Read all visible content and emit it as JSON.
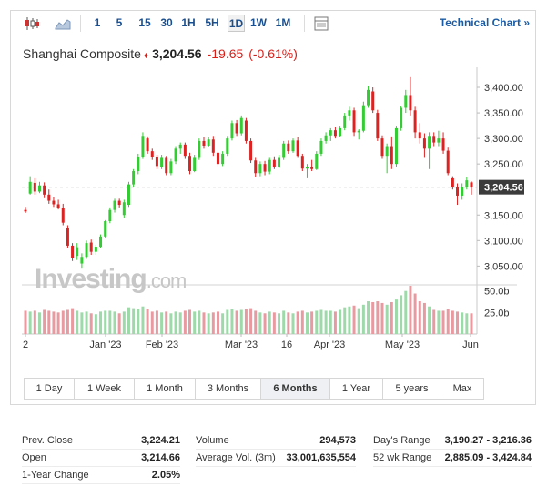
{
  "toolbar": {
    "intervals": [
      "1",
      "5",
      "15",
      "30",
      "1H",
      "5H",
      "1D",
      "1W",
      "1M"
    ],
    "active_interval": "1D",
    "technical_chart_label": "Technical Chart",
    "technical_chart_arrow": "»"
  },
  "instrument": {
    "name": "Shanghai Composite",
    "direction_arrow": "♦",
    "price": "3,204.56",
    "change": "-19.65",
    "change_pct": "(-0.61%)"
  },
  "watermark": {
    "brand": "Investing",
    "suffix": ".com"
  },
  "colors": {
    "up": "#33cc33",
    "down": "#dd2222",
    "vol_up": "#9ed9a9",
    "vol_down": "#e89aa0",
    "price_tag": "#3b3b3b",
    "link": "#1a5ba6"
  },
  "chart_data": {
    "type": "candlestick",
    "y_axis": {
      "min": 3015,
      "max": 3425,
      "ticks": [
        3400,
        3350,
        3300,
        3250,
        3150,
        3100,
        3050
      ],
      "tick_labels": [
        "3,400.00",
        "3,350.00",
        "3,300.00",
        "3,250.00",
        "3,150.00",
        "3,100.00",
        "3,050.00"
      ]
    },
    "last_price_line": 3204.56,
    "last_price_label": "3,204.56",
    "x_labels": [
      "2",
      "Jan '23",
      "Feb '23",
      "Mar '23",
      "16",
      "Apr '23",
      "May '23",
      "Jun"
    ],
    "volume_axis": {
      "max": 56,
      "ticks": [
        50,
        25
      ],
      "tick_labels": [
        "50.0b",
        "25.0b"
      ]
    },
    "candles": [
      [
        3160,
        3166,
        3154,
        3157,
        27
      ],
      [
        3192,
        3226,
        3190,
        3215,
        26
      ],
      [
        3213,
        3222,
        3190,
        3196,
        27
      ],
      [
        3196,
        3215,
        3193,
        3208,
        25
      ],
      [
        3208,
        3214,
        3183,
        3190,
        28
      ],
      [
        3190,
        3200,
        3172,
        3178,
        27
      ],
      [
        3178,
        3186,
        3166,
        3171,
        26
      ],
      [
        3171,
        3180,
        3161,
        3164,
        25
      ],
      [
        3164,
        3172,
        3130,
        3135,
        27
      ],
      [
        3125,
        3130,
        3085,
        3090,
        28
      ],
      [
        3090,
        3095,
        3060,
        3065,
        30
      ],
      [
        3070,
        3095,
        3062,
        3087,
        27
      ],
      [
        3055,
        3075,
        3045,
        3068,
        25
      ],
      [
        3068,
        3100,
        3064,
        3095,
        26
      ],
      [
        3096,
        3102,
        3072,
        3078,
        24
      ],
      [
        3078,
        3092,
        3072,
        3088,
        23
      ],
      [
        3088,
        3112,
        3085,
        3108,
        26
      ],
      [
        3108,
        3140,
        3105,
        3138,
        27
      ],
      [
        3138,
        3165,
        3134,
        3160,
        27
      ],
      [
        3160,
        3182,
        3155,
        3178,
        26
      ],
      [
        3178,
        3182,
        3165,
        3170,
        24
      ],
      [
        3150,
        3180,
        3144,
        3175,
        26
      ],
      [
        3170,
        3215,
        3166,
        3210,
        31
      ],
      [
        3210,
        3240,
        3205,
        3236,
        30
      ],
      [
        3236,
        3270,
        3230,
        3264,
        29
      ],
      [
        3264,
        3312,
        3260,
        3305,
        32
      ],
      [
        3300,
        3304,
        3270,
        3275,
        29
      ],
      [
        3275,
        3280,
        3258,
        3264,
        26
      ],
      [
        3264,
        3268,
        3240,
        3246,
        27
      ],
      [
        3244,
        3268,
        3240,
        3262,
        25
      ],
      [
        3262,
        3266,
        3228,
        3232,
        26
      ],
      [
        3232,
        3260,
        3228,
        3255,
        24
      ],
      [
        3255,
        3285,
        3250,
        3280,
        26
      ],
      [
        3280,
        3292,
        3270,
        3288,
        25
      ],
      [
        3288,
        3292,
        3260,
        3266,
        27
      ],
      [
        3266,
        3272,
        3230,
        3236,
        28
      ],
      [
        3236,
        3268,
        3234,
        3262,
        26
      ],
      [
        3262,
        3300,
        3258,
        3295,
        27
      ],
      [
        3295,
        3302,
        3280,
        3286,
        25
      ],
      [
        3286,
        3302,
        3284,
        3298,
        24
      ],
      [
        3298,
        3305,
        3266,
        3272,
        25
      ],
      [
        3272,
        3276,
        3245,
        3250,
        26
      ],
      [
        3250,
        3275,
        3246,
        3270,
        24
      ],
      [
        3270,
        3305,
        3266,
        3300,
        28
      ],
      [
        3300,
        3335,
        3296,
        3330,
        29
      ],
      [
        3330,
        3336,
        3305,
        3310,
        27
      ],
      [
        3310,
        3345,
        3306,
        3340,
        28
      ],
      [
        3335,
        3340,
        3290,
        3295,
        29
      ],
      [
        3295,
        3300,
        3252,
        3257,
        30
      ],
      [
        3257,
        3262,
        3225,
        3232,
        27
      ],
      [
        3232,
        3255,
        3226,
        3250,
        25
      ],
      [
        3250,
        3256,
        3228,
        3235,
        24
      ],
      [
        3235,
        3262,
        3230,
        3258,
        26
      ],
      [
        3258,
        3265,
        3240,
        3245,
        25
      ],
      [
        3245,
        3268,
        3242,
        3262,
        24
      ],
      [
        3262,
        3295,
        3258,
        3290,
        27
      ],
      [
        3290,
        3296,
        3270,
        3275,
        25
      ],
      [
        3275,
        3300,
        3272,
        3296,
        24
      ],
      [
        3296,
        3302,
        3262,
        3266,
        26
      ],
      [
        3266,
        3270,
        3236,
        3241,
        27
      ],
      [
        3241,
        3250,
        3222,
        3245,
        25
      ],
      [
        3245,
        3258,
        3236,
        3240,
        26
      ],
      [
        3240,
        3275,
        3238,
        3270,
        27
      ],
      [
        3270,
        3300,
        3266,
        3295,
        28
      ],
      [
        3295,
        3312,
        3290,
        3306,
        27
      ],
      [
        3306,
        3320,
        3295,
        3316,
        27
      ],
      [
        3316,
        3322,
        3300,
        3305,
        26
      ],
      [
        3305,
        3325,
        3302,
        3320,
        28
      ],
      [
        3320,
        3350,
        3316,
        3345,
        31
      ],
      [
        3345,
        3362,
        3335,
        3355,
        32
      ],
      [
        3355,
        3360,
        3305,
        3312,
        33
      ],
      [
        3312,
        3318,
        3298,
        3315,
        30
      ],
      [
        3315,
        3372,
        3312,
        3365,
        34
      ],
      [
        3365,
        3402,
        3360,
        3395,
        38
      ],
      [
        3392,
        3400,
        3350,
        3355,
        37
      ],
      [
        3350,
        3356,
        3295,
        3300,
        38
      ],
      [
        3300,
        3306,
        3260,
        3266,
        36
      ],
      [
        3266,
        3290,
        3232,
        3285,
        34
      ],
      [
        3285,
        3304,
        3240,
        3250,
        37
      ],
      [
        3250,
        3325,
        3245,
        3320,
        40
      ],
      [
        3320,
        3364,
        3315,
        3360,
        45
      ],
      [
        3360,
        3395,
        3350,
        3385,
        50
      ],
      [
        3385,
        3420,
        3345,
        3355,
        56
      ],
      [
        3355,
        3362,
        3300,
        3312,
        47
      ],
      [
        3312,
        3330,
        3290,
        3300,
        38
      ],
      [
        3300,
        3310,
        3262,
        3280,
        36
      ],
      [
        3280,
        3312,
        3240,
        3305,
        32
      ],
      [
        3305,
        3312,
        3285,
        3292,
        28
      ],
      [
        3292,
        3315,
        3285,
        3300,
        27
      ],
      [
        3300,
        3312,
        3270,
        3276,
        27
      ],
      [
        3276,
        3282,
        3228,
        3232,
        29
      ],
      [
        3222,
        3226,
        3200,
        3205,
        27
      ],
      [
        3205,
        3212,
        3170,
        3188,
        26
      ],
      [
        3188,
        3212,
        3180,
        3205,
        25
      ],
      [
        3205,
        3225,
        3200,
        3218,
        24
      ],
      [
        3214,
        3216,
        3190,
        3204,
        24
      ]
    ]
  },
  "range_buttons": [
    "1 Day",
    "1 Week",
    "1 Month",
    "3 Months",
    "6 Months",
    "1 Year",
    "5 years",
    "Max"
  ],
  "active_range": "6 Months",
  "stats": {
    "col1": [
      {
        "label": "Prev. Close",
        "value": "3,224.21"
      },
      {
        "label": "Open",
        "value": "3,214.66"
      },
      {
        "label": "1-Year Change",
        "value": "2.05%"
      }
    ],
    "col2": [
      {
        "label": "Volume",
        "value": "294,573"
      },
      {
        "label": "Average Vol. (3m)",
        "value": "33,001,635,554"
      }
    ],
    "col3": [
      {
        "label": "Day's Range",
        "value": "3,190.27 - 3,216.36"
      },
      {
        "label": "52 wk Range",
        "value": "2,885.09 - 3,424.84"
      }
    ]
  }
}
